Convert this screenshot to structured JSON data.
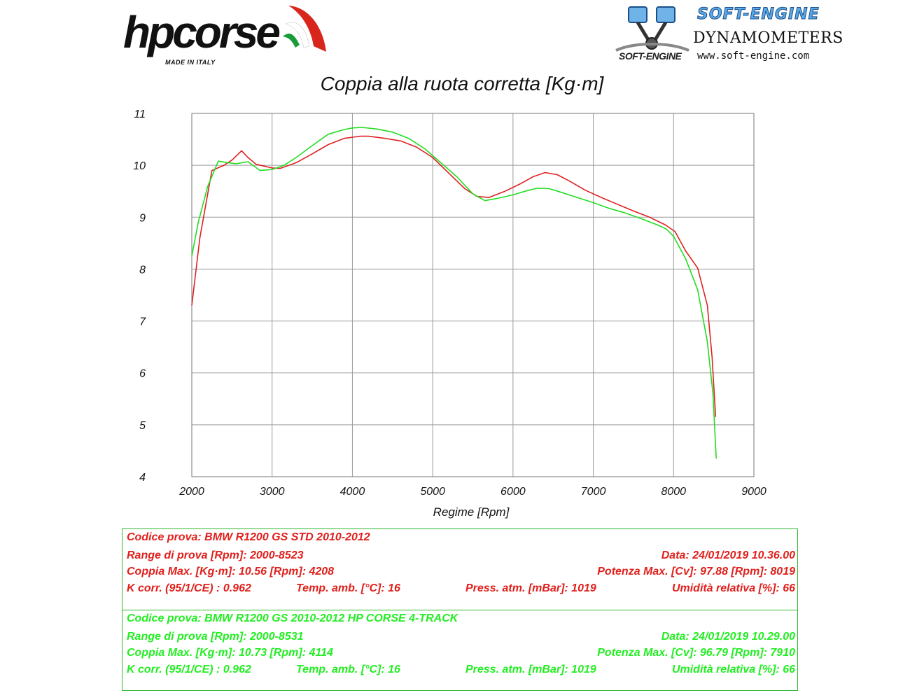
{
  "header": {
    "brand_logo": {
      "text": "hpcorse",
      "subtitle": "MADE IN ITALY",
      "swoosh_colors": [
        "#1a9b3a",
        "#ffffff",
        "#d9261c"
      ]
    },
    "dyno_logo": {
      "title": "SOFT-ENGINE",
      "subtitle": "DYNAMOMETERS",
      "website": "www.soft-engine.com",
      "mark_text": "SOFT-ENGINE",
      "icon": "piston-icon"
    }
  },
  "chart_data": {
    "type": "line",
    "title": "Coppia alla ruota corretta [Kg·m]",
    "xlabel": "Regime [Rpm]",
    "ylabel": "",
    "xlim": [
      2000,
      9000
    ],
    "ylim": [
      4,
      11
    ],
    "xticks": [
      "2000",
      "3000",
      "4000",
      "5000",
      "6000",
      "7000",
      "8000",
      "9000"
    ],
    "yticks": [
      "4",
      "5",
      "6",
      "7",
      "8",
      "9",
      "10",
      "11"
    ],
    "grid": true,
    "series": [
      {
        "color": "#dd2222",
        "points": [
          [
            2000,
            7.3
          ],
          [
            2100,
            8.6
          ],
          [
            2250,
            9.9
          ],
          [
            2400,
            10.0
          ],
          [
            2500,
            10.1
          ],
          [
            2620,
            10.28
          ],
          [
            2700,
            10.15
          ],
          [
            2800,
            10.02
          ],
          [
            3000,
            9.95
          ],
          [
            3100,
            9.94
          ],
          [
            3300,
            10.05
          ],
          [
            3500,
            10.22
          ],
          [
            3700,
            10.4
          ],
          [
            3900,
            10.52
          ],
          [
            4100,
            10.56
          ],
          [
            4200,
            10.56
          ],
          [
            4400,
            10.52
          ],
          [
            4600,
            10.47
          ],
          [
            4800,
            10.35
          ],
          [
            5000,
            10.15
          ],
          [
            5200,
            9.85
          ],
          [
            5400,
            9.55
          ],
          [
            5550,
            9.4
          ],
          [
            5700,
            9.38
          ],
          [
            5900,
            9.5
          ],
          [
            6100,
            9.65
          ],
          [
            6250,
            9.78
          ],
          [
            6400,
            9.86
          ],
          [
            6550,
            9.82
          ],
          [
            6700,
            9.7
          ],
          [
            6900,
            9.52
          ],
          [
            7100,
            9.38
          ],
          [
            7300,
            9.25
          ],
          [
            7500,
            9.12
          ],
          [
            7700,
            9.0
          ],
          [
            7900,
            8.85
          ],
          [
            8019,
            8.72
          ],
          [
            8150,
            8.35
          ],
          [
            8300,
            8.02
          ],
          [
            8420,
            7.3
          ],
          [
            8480,
            6.3
          ],
          [
            8523,
            5.15
          ]
        ]
      },
      {
        "color": "#22dd22",
        "points": [
          [
            2000,
            8.25
          ],
          [
            2080,
            8.9
          ],
          [
            2200,
            9.6
          ],
          [
            2330,
            10.08
          ],
          [
            2450,
            10.05
          ],
          [
            2550,
            10.03
          ],
          [
            2700,
            10.07
          ],
          [
            2850,
            9.9
          ],
          [
            3000,
            9.92
          ],
          [
            3150,
            10.0
          ],
          [
            3300,
            10.15
          ],
          [
            3500,
            10.38
          ],
          [
            3700,
            10.6
          ],
          [
            3900,
            10.69
          ],
          [
            4000,
            10.72
          ],
          [
            4114,
            10.73
          ],
          [
            4300,
            10.7
          ],
          [
            4500,
            10.64
          ],
          [
            4700,
            10.52
          ],
          [
            4900,
            10.32
          ],
          [
            5100,
            10.05
          ],
          [
            5300,
            9.78
          ],
          [
            5500,
            9.45
          ],
          [
            5650,
            9.32
          ],
          [
            5800,
            9.36
          ],
          [
            6000,
            9.43
          ],
          [
            6150,
            9.5
          ],
          [
            6300,
            9.56
          ],
          [
            6450,
            9.55
          ],
          [
            6600,
            9.48
          ],
          [
            6800,
            9.38
          ],
          [
            7000,
            9.28
          ],
          [
            7200,
            9.17
          ],
          [
            7400,
            9.08
          ],
          [
            7600,
            8.97
          ],
          [
            7800,
            8.85
          ],
          [
            7910,
            8.77
          ],
          [
            8000,
            8.63
          ],
          [
            8150,
            8.2
          ],
          [
            8300,
            7.6
          ],
          [
            8420,
            6.6
          ],
          [
            8490,
            5.6
          ],
          [
            8531,
            4.35
          ]
        ]
      }
    ]
  },
  "info_table": {
    "blocks": [
      {
        "color": "#e0201c",
        "codice": "Codice prova: BMW R1200 GS STD   2010-2012",
        "range": "Range di prova [Rpm]: 2000-8523",
        "data": "Data: 24/01/2019   10.36.00",
        "coppia": "Coppia Max. [Kg·m]: 10.56   [Rpm]: 4208",
        "potenza": "Potenza Max. [Cv]: 97.88   [Rpm]: 8019",
        "kcorr": "K corr. (95/1/CE) : 0.962",
        "temp": "Temp. amb. [°C]: 16",
        "press": "Press. atm. [mBar]: 1019",
        "umidita": "Umidità relativa [%]: 66"
      },
      {
        "color": "#22ee22",
        "codice": "Codice prova: BMW R1200 GS   2010-2012 HP CORSE 4-TRACK",
        "range": "Range di prova [Rpm]: 2000-8531",
        "data": "Data: 24/01/2019   10.29.00",
        "coppia": "Coppia Max. [Kg·m]: 10.73   [Rpm]: 4114",
        "potenza": "Potenza Max. [Cv]: 96.79   [Rpm]: 7910",
        "kcorr": "K corr. (95/1/CE) : 0.962",
        "temp": "Temp. amb. [°C]: 16",
        "press": "Press. atm. [mBar]: 1019",
        "umidita": "Umidità relativa [%]: 66"
      }
    ]
  }
}
